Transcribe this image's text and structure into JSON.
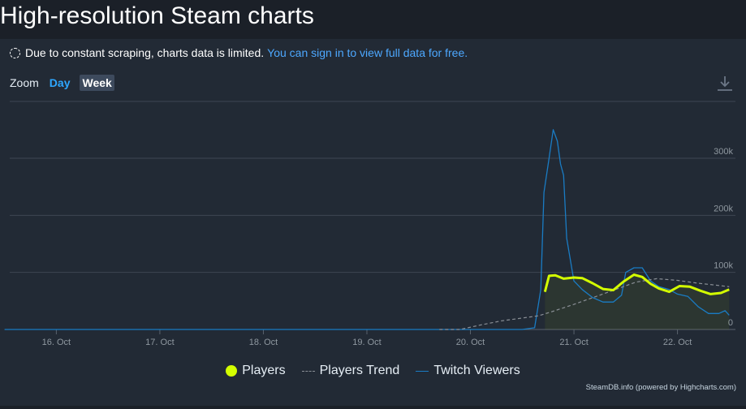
{
  "page": {
    "title": "High-resolution Steam charts"
  },
  "notice": {
    "text": "Due to constant scraping, charts data is limited.",
    "link_text": "You can sign in to view full data for free."
  },
  "zoom": {
    "label": "Zoom",
    "day_label": "Day",
    "week_label": "Week",
    "selected": "Week"
  },
  "toolbar": {
    "download_icon": "download-icon"
  },
  "legend": {
    "players": "Players",
    "trend": "Players Trend",
    "twitch": "Twitch Viewers"
  },
  "credits": "SteamDB.info (powered by Highcharts.com)",
  "colors": {
    "players": "#d4ff00",
    "trend": "#8a8f96",
    "twitch": "#1a7cc4",
    "grid": "#3e4652"
  },
  "chart_data": {
    "type": "line",
    "x_tick_labels": [
      "16. Oct",
      "17. Oct",
      "18. Oct",
      "19. Oct",
      "20. Oct",
      "21. Oct",
      "22. Oct"
    ],
    "y_tick_labels": [
      "0",
      "100k",
      "200k",
      "300k"
    ],
    "ylim": [
      0,
      330000
    ],
    "grid": true,
    "legend_position": "bottom-center",
    "series": [
      {
        "name": "Players",
        "key": "players",
        "style": "solid-thick-area",
        "x": [
          20.72,
          20.76,
          20.82,
          20.9,
          21.0,
          21.08,
          21.18,
          21.28,
          21.38,
          21.48,
          21.58,
          21.66,
          21.74,
          21.82,
          21.92,
          22.02,
          22.12,
          22.22,
          22.32,
          22.42,
          22.5
        ],
        "y": [
          66000,
          94000,
          95000,
          89000,
          91000,
          90000,
          81000,
          71000,
          69000,
          84000,
          96000,
          92000,
          80000,
          72000,
          66000,
          76000,
          75000,
          68000,
          62000,
          64000,
          70000
        ]
      },
      {
        "name": "Players Trend",
        "key": "trend",
        "style": "dashed",
        "x": [
          19.7,
          19.9,
          20.1,
          20.3,
          20.5,
          20.66,
          20.8,
          21.0,
          21.2,
          21.4,
          21.6,
          21.8,
          22.0,
          22.2,
          22.4,
          22.5
        ],
        "y": [
          0,
          0,
          8000,
          15000,
          20000,
          24000,
          32000,
          44000,
          57000,
          70000,
          83000,
          89000,
          86000,
          81000,
          77000,
          75000
        ]
      },
      {
        "name": "Twitch Viewers",
        "key": "twitch",
        "style": "solid",
        "x": [
          15.5,
          20.5,
          20.62,
          20.68,
          20.71,
          20.76,
          20.8,
          20.84,
          20.87,
          20.9,
          20.93,
          21.0,
          21.08,
          21.18,
          21.28,
          21.38,
          21.46,
          21.5,
          21.58,
          21.66,
          21.74,
          21.82,
          21.92,
          22.0,
          22.1,
          22.2,
          22.3,
          22.4,
          22.46,
          22.5
        ],
        "y": [
          0,
          0,
          3000,
          70000,
          240000,
          300000,
          350000,
          330000,
          290000,
          270000,
          160000,
          85000,
          70000,
          56000,
          48000,
          48000,
          60000,
          100000,
          108000,
          108000,
          85000,
          75000,
          70000,
          62000,
          58000,
          40000,
          28000,
          28000,
          33000,
          25000
        ]
      }
    ]
  }
}
